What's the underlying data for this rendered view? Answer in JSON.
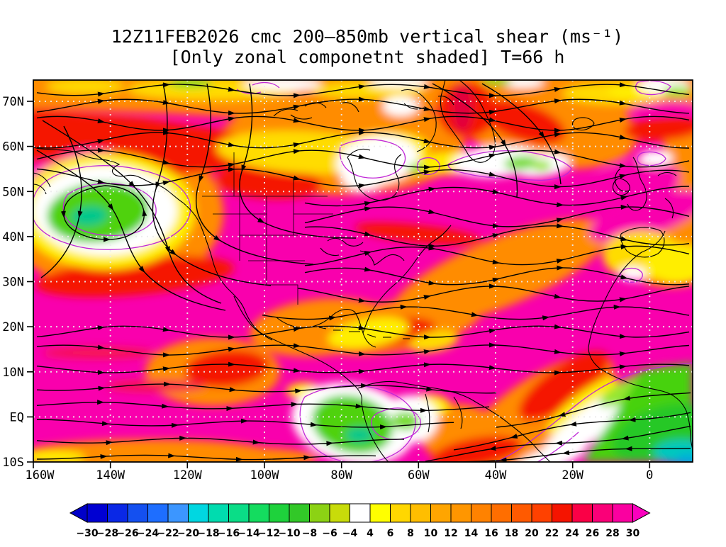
{
  "title": {
    "line1": "12Z11FEB2026 cmc 200–850mb vertical shear (ms⁻¹)",
    "line2": "[Only zonal componetnt shaded] T=66 h"
  },
  "axes": {
    "lat_labels": [
      "70N",
      "60N",
      "50N",
      "40N",
      "30N",
      "20N",
      "10N",
      "EQ",
      "10S"
    ],
    "lon_labels": [
      "160W",
      "140W",
      "120W",
      "100W",
      "80W",
      "60W",
      "40W",
      "20W",
      "0"
    ]
  },
  "colorbar": {
    "labels": [
      "−30",
      "−28",
      "−26",
      "−24",
      "−22",
      "−20",
      "−18",
      "−16",
      "−14",
      "−12",
      "−10",
      "−8",
      "−6",
      "−4",
      "4",
      "6",
      "8",
      "10",
      "12",
      "14",
      "16",
      "18",
      "20",
      "22",
      "24",
      "26",
      "28",
      "30"
    ],
    "cells": [
      "#0000d2",
      "#0a28e6",
      "#1450f0",
      "#1e6eff",
      "#3c96ff",
      "#00d7e1",
      "#00dcaf",
      "#0add87",
      "#14dc5f",
      "#1ed23c",
      "#32c828",
      "#8cd214",
      "#c8dc0a",
      "#ffffff",
      "#ffff00",
      "#ffd700",
      "#ffbe00",
      "#ffa500",
      "#ff9600",
      "#ff8200",
      "#ff6e00",
      "#ff5a00",
      "#ff4100",
      "#f51400",
      "#fa0046",
      "#fa0078",
      "#fa00a0"
    ],
    "arrow_left": "#0000c8",
    "arrow_right": "#fa00be"
  },
  "chart_data": {
    "type": "heatmap",
    "title": "12Z11FEB2026 cmc 200–850mb vertical shear (ms⁻¹)",
    "subtitle": "[Only zonal componetnt shaded] T=66 h",
    "init_time": "12Z11FEB2026",
    "model": "cmc",
    "layer": "200-850mb",
    "variable": "vertical shear (zonal component shaded)",
    "units": "ms⁻¹",
    "forecast_hour": 66,
    "x": {
      "label": "longitude",
      "ticks": [
        "160W",
        "140W",
        "120W",
        "100W",
        "80W",
        "60W",
        "40W",
        "20W",
        "0"
      ]
    },
    "y": {
      "label": "latitude",
      "ticks": [
        "70N",
        "60N",
        "50N",
        "40N",
        "30N",
        "20N",
        "10N",
        "EQ",
        "10S"
      ]
    },
    "colorbar_levels": [
      -30,
      -28,
      -26,
      -24,
      -22,
      -20,
      -18,
      -16,
      -14,
      -12,
      -10,
      -8,
      -6,
      -4,
      4,
      6,
      8,
      10,
      12,
      14,
      16,
      18,
      20,
      22,
      24,
      26,
      28,
      30
    ],
    "grid": "10-degree dotted graticule",
    "legend_position": "bottom horizontal colorbar with out-of-range arrows",
    "overlays": [
      "black streamlines with arrowheads",
      "coastlines and US state borders",
      "purple contour outlines around weak/negative shear regions"
    ],
    "notable_regions": [
      {
        "area": "North Pacific near 45N 145W",
        "value": "negative zonal shear, minimum about -16 to -18 (green core in white ring)"
      },
      {
        "area": "most mid-latitudes and tropics 10S-55N",
        "value": "> 30 (magenta, off-scale arrow color)"
      },
      {
        "area": "high latitudes 60-75N",
        "value": "mostly 6 to 22 (yellow-orange-red)"
      },
      {
        "area": "Labrador Sea / North Atlantic near 58N",
        "value": "-4 to 4 (white) with small greens"
      },
      {
        "area": "western equatorial South America",
        "value": "about -6 to -14 (green) inside white ring"
      },
      {
        "area": "tropical South Atlantic toward equatorial Africa",
        "value": "negative, down to about -18 (green to cyan at 10S near 0-10E)"
      },
      {
        "area": "Gulf of Mexico / Caribbean and subtropical NE Atlantic",
        "value": "8 to 20 (orange with yellow patches)"
      }
    ]
  }
}
